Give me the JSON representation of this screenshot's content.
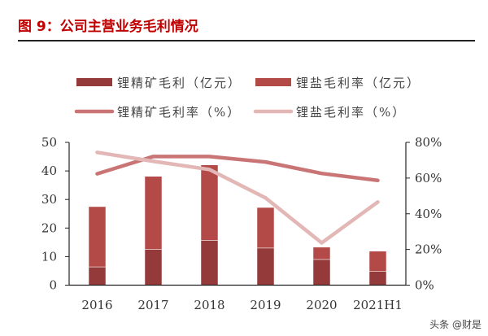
{
  "header": {
    "title": "图 9：公司主营业务毛利情况"
  },
  "watermark": "头条 @财是",
  "chart_data": {
    "type": "bar+line",
    "categories": [
      "2016",
      "2017",
      "2018",
      "2019",
      "2020",
      "2021H1"
    ],
    "stacked": true,
    "bar_series": [
      {
        "name": "锂精矿毛利（亿元）",
        "color": "#943a3a",
        "values": [
          6.4,
          12.5,
          15.7,
          13.0,
          9.0,
          4.8
        ]
      },
      {
        "name": "锂盐毛利率（亿元）",
        "color": "#b34a48",
        "values": [
          21.1,
          25.6,
          26.4,
          14.2,
          4.3,
          7.1
        ]
      }
    ],
    "line_series": [
      {
        "name": "锂精矿毛利率（%）",
        "color": "#c97575",
        "axis": "right",
        "values": [
          62.4,
          72.1,
          72.1,
          69.0,
          62.6,
          58.7
        ]
      },
      {
        "name": "锂盐毛利率（%）",
        "color": "#e2b7b6",
        "axis": "right",
        "values": [
          74.4,
          69.4,
          64.8,
          48.9,
          23.7,
          46.6
        ]
      }
    ],
    "ylim_left": [
      0,
      50
    ],
    "yticks_left": [
      "0",
      "10",
      "20",
      "30",
      "40",
      "50"
    ],
    "ylim_right": [
      0,
      80
    ],
    "yticks_right": [
      "0%",
      "20%",
      "40%",
      "60%",
      "80%"
    ],
    "legend": "top",
    "grid": false
  }
}
